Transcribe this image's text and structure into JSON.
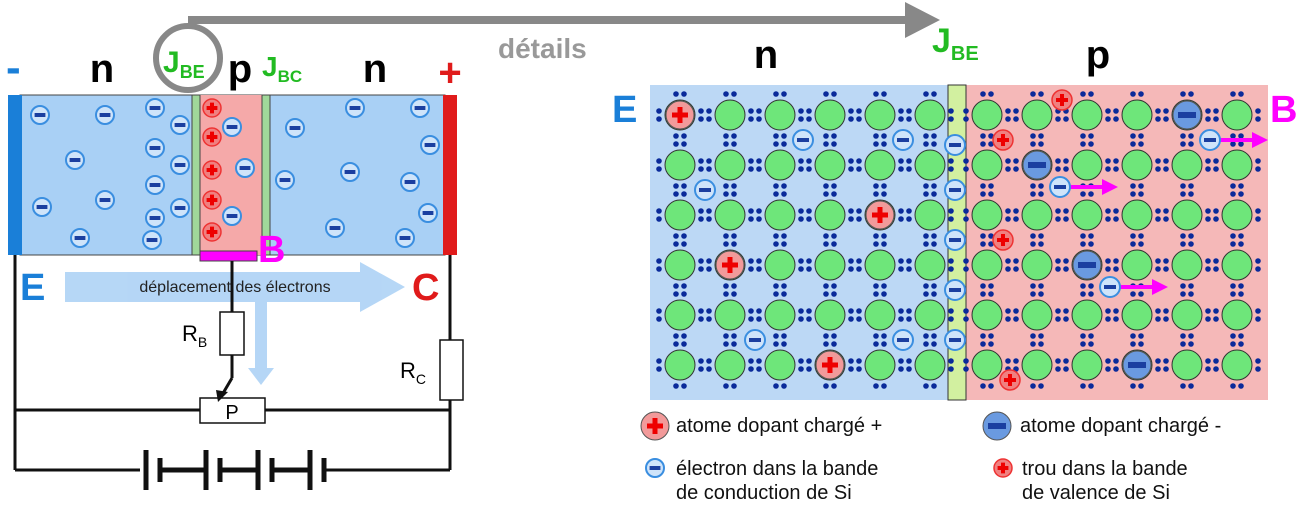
{
  "left": {
    "minus": "-",
    "plus": "+",
    "regions": [
      "n",
      "p",
      "n"
    ],
    "junctions": [
      {
        "J": "J",
        "sub": "BE"
      },
      {
        "J": "J",
        "sub": "BC"
      }
    ],
    "E": "E",
    "B": "B",
    "C": "C",
    "flow": "déplacement des électrons",
    "rb": {
      "R": "R",
      "sub": "B"
    },
    "rc": {
      "R": "R",
      "sub": "C"
    },
    "pot": "P"
  },
  "arrow": "détails",
  "right": {
    "n": "n",
    "p": "p",
    "junction": {
      "J": "J",
      "sub": "BE"
    },
    "E": "E",
    "B": "B",
    "legend": [
      {
        "lines": [
          "atome dopant chargé +"
        ]
      },
      {
        "lines": [
          "atome dopant chargé -"
        ]
      },
      {
        "lines": [
          "électron dans la bande",
          "de conduction de Si"
        ]
      },
      {
        "lines": [
          "trou dans la bande",
          "de valence de Si"
        ]
      }
    ]
  }
}
